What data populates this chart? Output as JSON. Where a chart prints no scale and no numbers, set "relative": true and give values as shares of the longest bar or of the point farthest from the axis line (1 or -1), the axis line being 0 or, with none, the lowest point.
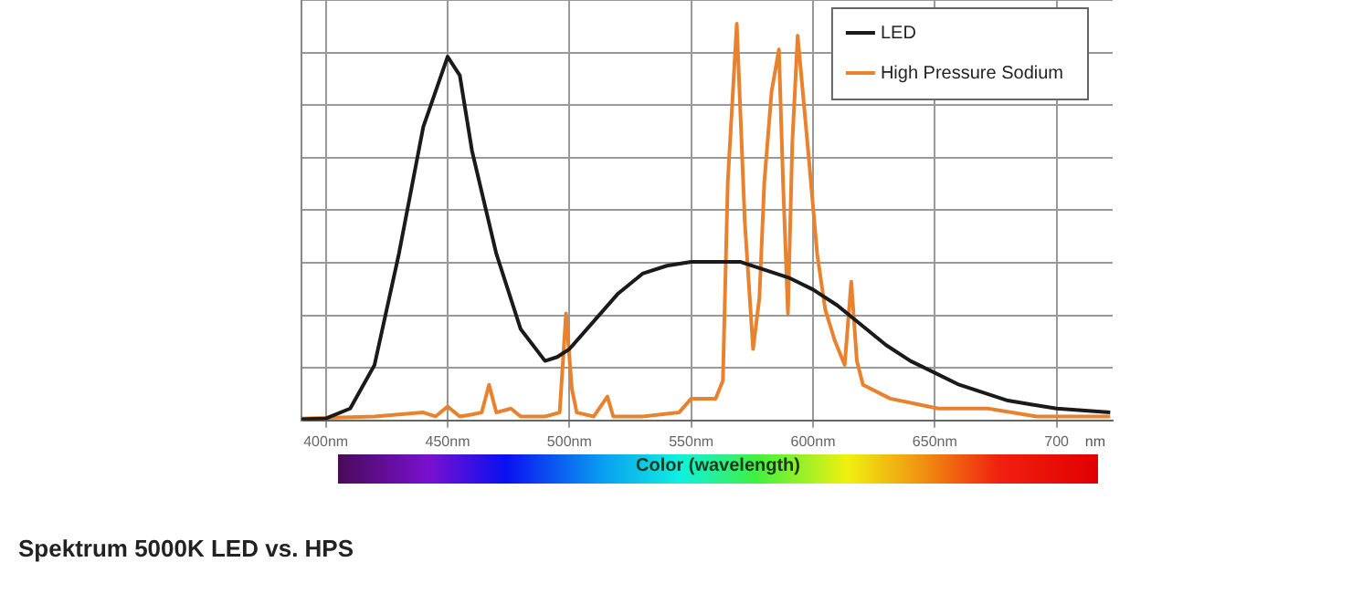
{
  "chart_data": {
    "type": "line",
    "relative": true,
    "xlabel": "nm",
    "grid": true,
    "legend": "top right",
    "marker": "none",
    "line_style": "solid",
    "xlim": [
      390,
      723
    ],
    "xticks": [
      {
        "value": 400,
        "label": "400nm"
      },
      {
        "value": 450,
        "label": "450nm"
      },
      {
        "value": 500,
        "label": "500nm"
      },
      {
        "value": 550,
        "label": "550nm"
      },
      {
        "value": 600,
        "label": "600nm"
      },
      {
        "value": 650,
        "label": "650nm"
      },
      {
        "value": 700,
        "label": "700"
      }
    ],
    "annotations": [
      "Color (wavelength)",
      "Spektrum 5000K LED vs. HPS"
    ],
    "series": [
      {
        "name": "LED",
        "color": "#1a1a1a",
        "x": [
          390,
          400,
          410,
          420,
          430,
          440,
          450,
          455,
          460,
          470,
          480,
          490,
          495,
          500,
          510,
          520,
          530,
          540,
          550,
          560,
          570,
          580,
          590,
          600,
          610,
          620,
          630,
          640,
          650,
          660,
          670,
          680,
          690,
          700,
          722
        ],
        "values": [
          0.003,
          0.005,
          0.03,
          0.14,
          0.42,
          0.74,
          0.917,
          0.87,
          0.68,
          0.42,
          0.23,
          0.15,
          0.16,
          0.18,
          0.25,
          0.32,
          0.37,
          0.39,
          0.4,
          0.4,
          0.4,
          0.38,
          0.36,
          0.33,
          0.29,
          0.24,
          0.19,
          0.15,
          0.12,
          0.09,
          0.07,
          0.05,
          0.04,
          0.03,
          0.02
        ]
      },
      {
        "name": "High Pressure Sodium",
        "color": "#e8822e",
        "x": [
          390,
          420,
          440,
          445,
          450,
          455,
          460,
          464,
          467,
          470,
          476,
          480,
          490,
          496,
          498.6,
          501,
          503,
          510,
          515.6,
          518,
          530,
          545,
          550,
          560,
          563,
          565,
          568.7,
          572,
          575.4,
          578,
          580,
          583,
          586,
          587.7,
          589.7,
          591.5,
          593.7,
          598,
          601.7,
          605,
          609,
          613,
          615.7,
          618,
          620.5,
          631.7,
          651.5,
          671.8,
          691.8,
          722
        ],
        "values": [
          0.005,
          0.01,
          0.02,
          0.01,
          0.035,
          0.01,
          0.015,
          0.02,
          0.09,
          0.02,
          0.03,
          0.01,
          0.01,
          0.02,
          0.27,
          0.08,
          0.02,
          0.01,
          0.06,
          0.01,
          0.01,
          0.02,
          0.055,
          0.055,
          0.1,
          0.6,
          1,
          0.5,
          0.18,
          0.31,
          0.6,
          0.83,
          0.935,
          0.6,
          0.27,
          0.7,
          0.97,
          0.68,
          0.42,
          0.28,
          0.2,
          0.14,
          0.35,
          0.15,
          0.09,
          0.055,
          0.03,
          0.03,
          0.01,
          0.01
        ]
      }
    ]
  }
}
